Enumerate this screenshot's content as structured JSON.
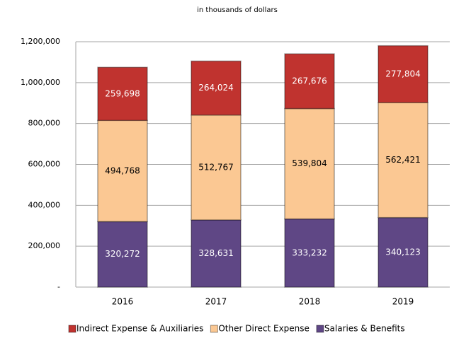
{
  "chart_data": {
    "type": "stacked_bar",
    "subtitle": "in thousands of dollars",
    "categories": [
      "2016",
      "2017",
      "2018",
      "2019"
    ],
    "series": [
      {
        "name": "Salaries & Benefits",
        "color": "#5f4785",
        "values": [
          320272,
          328631,
          333232,
          340123
        ],
        "value_labels": [
          "320,272",
          "328,631",
          "333,232",
          "340,123"
        ]
      },
      {
        "name": "Other Direct Expense",
        "color": "#fbc893",
        "values": [
          494768,
          512767,
          539804,
          562421
        ],
        "value_labels": [
          "494,768",
          "512,767",
          "539,804",
          "562,421"
        ]
      },
      {
        "name": "Indirect Expense & Auxiliaries",
        "color": "#c0332f",
        "values": [
          259698,
          264024,
          267676,
          277804
        ],
        "value_labels": [
          "259,698",
          "264,024",
          "267,676",
          "277,804"
        ]
      }
    ],
    "ylim": [
      0,
      1200000
    ],
    "yticks": [
      {
        "value": 0,
        "label": "-"
      },
      {
        "value": 200000,
        "label": "200,000"
      },
      {
        "value": 400000,
        "label": "400,000"
      },
      {
        "value": 600000,
        "label": "600,000"
      },
      {
        "value": 800000,
        "label": "800,000"
      },
      {
        "value": 1000000,
        "label": "1,000,000"
      },
      {
        "value": 1200000,
        "label": "1,200,000"
      }
    ],
    "grid": true,
    "legend": "bottom"
  }
}
